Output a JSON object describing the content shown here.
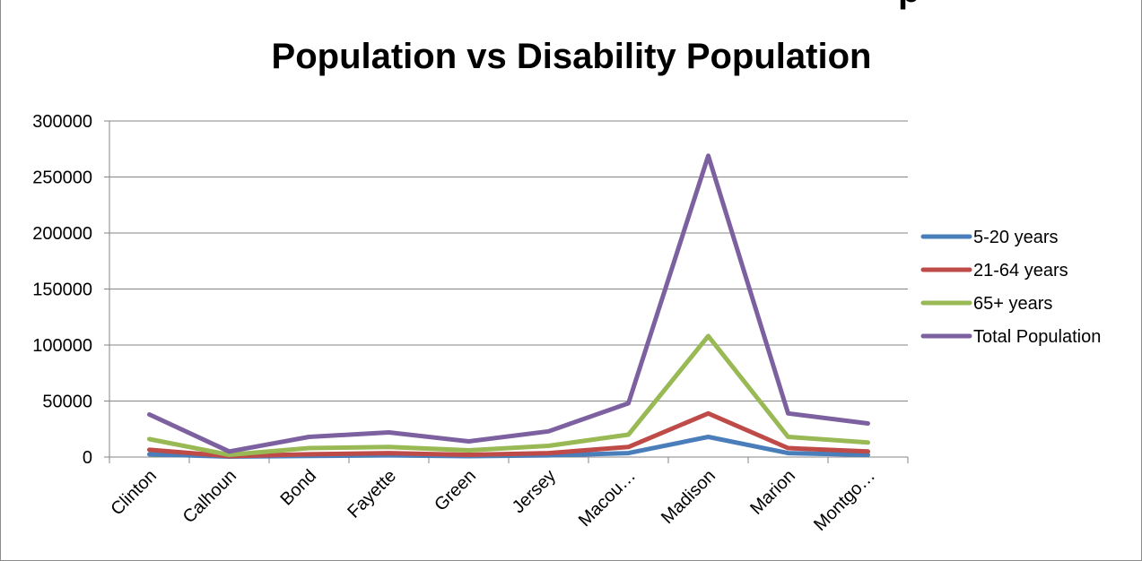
{
  "chart_data": {
    "type": "line",
    "title": "Population vs Disability Population",
    "top_cut_text": "p",
    "categories": [
      "Clinton",
      "Calhoun",
      "Bond",
      "Fayette",
      "Green",
      "Jersey",
      "Macou…",
      "Madison",
      "Marion",
      "Montgo…"
    ],
    "ylim": [
      0,
      300000
    ],
    "yticks": [
      0,
      50000,
      100000,
      150000,
      200000,
      250000,
      300000
    ],
    "grid": true,
    "legend_position": "right",
    "series": [
      {
        "name": "5-20 years",
        "color": "#4a7ebb",
        "values": [
          2500,
          400,
          1000,
          1500,
          800,
          1500,
          3500,
          18000,
          3500,
          2000
        ]
      },
      {
        "name": "21-64 years",
        "color": "#be4b48",
        "values": [
          6500,
          800,
          2500,
          3500,
          2000,
          3500,
          9000,
          39000,
          8000,
          5000
        ]
      },
      {
        "name": "65+ years",
        "color": "#98b954",
        "values": [
          16000,
          2000,
          8000,
          9000,
          6000,
          10000,
          20000,
          108000,
          18000,
          13000
        ]
      },
      {
        "name": "Total Population",
        "color": "#7d60a0",
        "values": [
          38000,
          5000,
          18000,
          22000,
          14000,
          23000,
          48000,
          269000,
          39000,
          30000
        ]
      }
    ]
  }
}
